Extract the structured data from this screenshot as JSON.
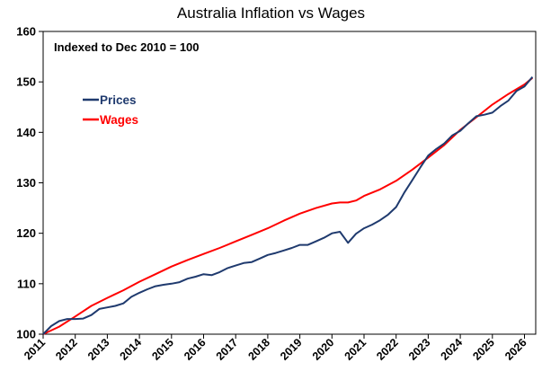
{
  "chart_data": {
    "type": "line",
    "title": "Australia Inflation vs Wages",
    "annotation": "Indexed to Dec 2010 = 100",
    "xlabel": "",
    "ylabel": "",
    "xlim": [
      2011.0,
      2026.35
    ],
    "ylim": [
      100,
      160
    ],
    "y_ticks": [
      "100",
      "110",
      "120",
      "130",
      "140",
      "150",
      "160"
    ],
    "x_ticks": [
      "2011",
      "2012",
      "2013",
      "2014",
      "2015",
      "2016",
      "2017",
      "2018",
      "2019",
      "2020",
      "2021",
      "2022",
      "2023",
      "2024",
      "2025",
      "2026"
    ],
    "grid": false,
    "legend_position": "upper-left",
    "series": [
      {
        "name": "Prices",
        "color": "#1f3a6e",
        "x": [
          2011.0,
          2011.25,
          2011.5,
          2011.75,
          2012.0,
          2012.25,
          2012.5,
          2012.75,
          2013.0,
          2013.25,
          2013.5,
          2013.75,
          2014.0,
          2014.25,
          2014.5,
          2014.75,
          2015.0,
          2015.25,
          2015.5,
          2015.75,
          2016.0,
          2016.25,
          2016.5,
          2016.75,
          2017.0,
          2017.25,
          2017.5,
          2017.75,
          2018.0,
          2018.25,
          2018.5,
          2018.75,
          2019.0,
          2019.25,
          2019.5,
          2019.75,
          2020.0,
          2020.25,
          2020.5,
          2020.75,
          2021.0,
          2021.25,
          2021.5,
          2021.75,
          2022.0,
          2022.25,
          2022.5,
          2022.75,
          2023.0,
          2023.25,
          2023.5,
          2023.75,
          2024.0,
          2024.25,
          2024.5,
          2024.75,
          2025.0,
          2025.25,
          2025.5,
          2025.75,
          2026.0,
          2026.25
        ],
        "values": [
          100.0,
          101.6,
          102.6,
          103.0,
          103.0,
          103.1,
          103.8,
          105.0,
          105.3,
          105.6,
          106.1,
          107.4,
          108.2,
          108.9,
          109.5,
          109.8,
          110.0,
          110.3,
          111.0,
          111.4,
          111.9,
          111.7,
          112.3,
          113.1,
          113.6,
          114.1,
          114.3,
          115.0,
          115.7,
          116.1,
          116.6,
          117.1,
          117.7,
          117.7,
          118.4,
          119.1,
          120.0,
          120.3,
          118.1,
          119.9,
          121.0,
          121.7,
          122.6,
          123.7,
          125.2,
          128.0,
          130.5,
          133.0,
          135.4,
          136.7,
          137.8,
          139.4,
          140.3,
          141.8,
          143.2,
          143.5,
          143.9,
          145.2,
          146.3,
          148.2,
          149.1,
          151.0
        ]
      },
      {
        "name": "Wages",
        "color": "#ff0000",
        "x": [
          2011.0,
          2011.5,
          2012.0,
          2012.5,
          2013.0,
          2013.5,
          2014.0,
          2014.5,
          2015.0,
          2015.5,
          2016.0,
          2016.5,
          2017.0,
          2017.5,
          2018.0,
          2018.5,
          2019.0,
          2019.5,
          2020.0,
          2020.25,
          2020.5,
          2020.75,
          2021.0,
          2021.5,
          2022.0,
          2022.5,
          2023.0,
          2023.5,
          2024.0,
          2024.5,
          2025.0,
          2025.5,
          2026.0,
          2026.25
        ],
        "values": [
          100.0,
          101.5,
          103.5,
          105.6,
          107.2,
          108.7,
          110.4,
          111.9,
          113.4,
          114.7,
          115.9,
          117.1,
          118.4,
          119.7,
          121.0,
          122.5,
          123.9,
          125.0,
          125.9,
          126.1,
          126.1,
          126.5,
          127.4,
          128.7,
          130.4,
          132.6,
          135.0,
          137.5,
          140.5,
          143.0,
          145.5,
          147.6,
          149.5,
          150.8
        ]
      }
    ]
  }
}
